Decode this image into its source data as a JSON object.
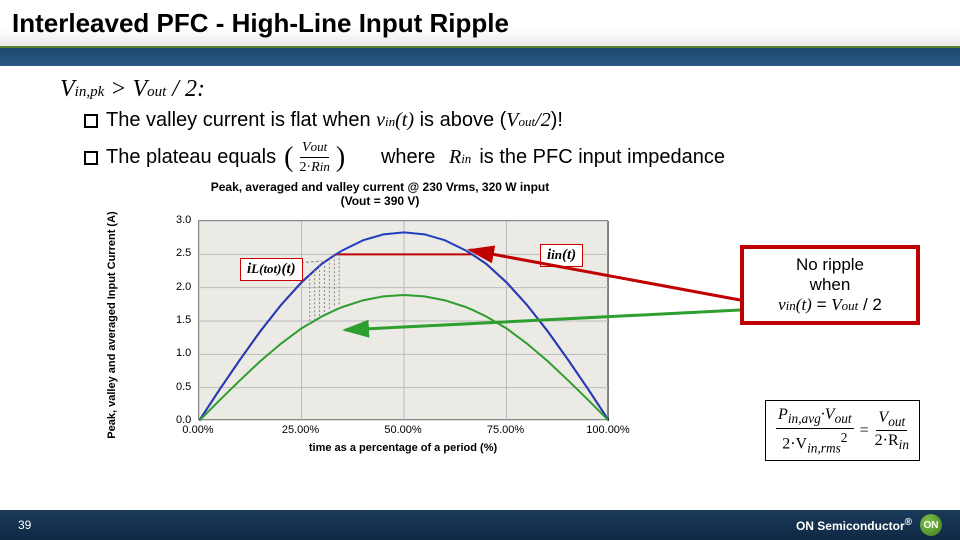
{
  "title": "Interleaved PFC - High-Line Input Ripple",
  "condition": {
    "lhs_var": "V",
    "lhs_sub": "in,pk",
    "op": " > ",
    "rhs_var": "V",
    "rhs_sub": "out",
    "rhs_div": " / 2",
    "colon": ":"
  },
  "bullet1": {
    "pre": "The valley current is flat when ",
    "vin": "v",
    "vin_sub": "in",
    "vin_t": "(t)",
    "mid": " is above (",
    "vout": "V",
    "vout_sub": "out",
    "vout_div": "/2",
    "post": ")!"
  },
  "bullet2": {
    "pre": "The plateau  equals",
    "frac_num_var": "V",
    "frac_num_sub": "out",
    "frac_den_pre": "2·",
    "frac_den_var": "R",
    "frac_den_sub": "in",
    "mid": "     where ",
    "rin": "R",
    "rin_sub": "in",
    "post": " is the PFC input impedance"
  },
  "chart": {
    "type": "line",
    "title_line1": "Peak, averaged and valley current @ 230 Vrms, 320 W input",
    "title_line2": "(Vout = 390 V)",
    "ylabel": "Peak, valley and averaged Input Current (A)",
    "xlabel": "time as a percentage of a period (%)",
    "xlim": [
      0,
      100
    ],
    "ylim": [
      0,
      3.0
    ],
    "xticks": [
      0,
      25,
      50,
      75,
      100
    ],
    "xtick_labels": [
      "0.00%",
      "25.00%",
      "50.00%",
      "75.00%",
      "100.00%"
    ],
    "yticks": [
      0.0,
      0.5,
      1.0,
      1.5,
      2.0,
      2.5,
      3.0
    ],
    "ytick_labels": [
      "0.0",
      "0.5",
      "1.0",
      "1.5",
      "2.0",
      "2.5",
      "3.0"
    ],
    "background_color": "#eceae4",
    "grid_color": "#bbbbbb",
    "series": {
      "peak": {
        "color": "#1f3fbf",
        "width": 2
      },
      "valley": {
        "color": "#c00000",
        "width": 2
      },
      "avg": {
        "color": "#2e9e2e",
        "width": 2
      }
    },
    "values": {
      "x": [
        0,
        5,
        10,
        15,
        20,
        25,
        30,
        33.4,
        35,
        40,
        45,
        50,
        55,
        60,
        65,
        66.6,
        70,
        75,
        80,
        85,
        90,
        95,
        100
      ],
      "peak": [
        0,
        0.47,
        0.92,
        1.35,
        1.74,
        2.08,
        2.36,
        2.5,
        2.56,
        2.71,
        2.8,
        2.83,
        2.8,
        2.71,
        2.56,
        2.5,
        2.36,
        2.08,
        1.74,
        1.35,
        0.92,
        0.47,
        0
      ],
      "valley": [
        0,
        0.47,
        0.92,
        1.35,
        1.74,
        2.08,
        2.36,
        2.5,
        2.5,
        2.5,
        2.5,
        2.5,
        2.5,
        2.5,
        2.5,
        2.5,
        2.36,
        2.08,
        1.74,
        1.35,
        0.92,
        0.47,
        0
      ],
      "avg": [
        0,
        0.31,
        0.61,
        0.9,
        1.16,
        1.39,
        1.57,
        1.67,
        1.71,
        1.81,
        1.87,
        1.89,
        1.87,
        1.81,
        1.71,
        1.67,
        1.57,
        1.39,
        1.16,
        0.9,
        0.61,
        0.31,
        0
      ]
    },
    "hatch_x_range": [
      27,
      35
    ],
    "label_iltot": {
      "text_i": "i",
      "text_sub": "L(tot)",
      "text_t": "(t)"
    },
    "label_iin": {
      "text_i": "i",
      "text_sub": "in",
      "text_t": "(t)"
    }
  },
  "noripple": {
    "line1": "No ripple",
    "line2": "when",
    "line3_vin": "v",
    "line3_vin_sub": "in",
    "line3_vin_t": "(t)",
    "line3_eq": " = ",
    "line3_vout": "V",
    "line3_vout_sub": "out",
    "line3_div": " / 2"
  },
  "eq": {
    "frac1_num_pre": "P",
    "frac1_num_sub": "in,avg",
    "frac1_num_mid": "·V",
    "frac1_num_sub2": "out",
    "frac1_den_pre": "2·V",
    "frac1_den_sub": "in,rms",
    "frac1_den_sup": "2",
    "equals": "=",
    "frac2_num_pre": "V",
    "frac2_num_sub": "out",
    "frac2_den_pre": "2·R",
    "frac2_den_sub": "in"
  },
  "arrows": {
    "red": {
      "color": "#c00000"
    },
    "green": {
      "color": "#2e9e2e"
    }
  },
  "footer": {
    "page": "39",
    "brand": "ON Semiconductor",
    "logo": "ON",
    "reg": "®"
  }
}
